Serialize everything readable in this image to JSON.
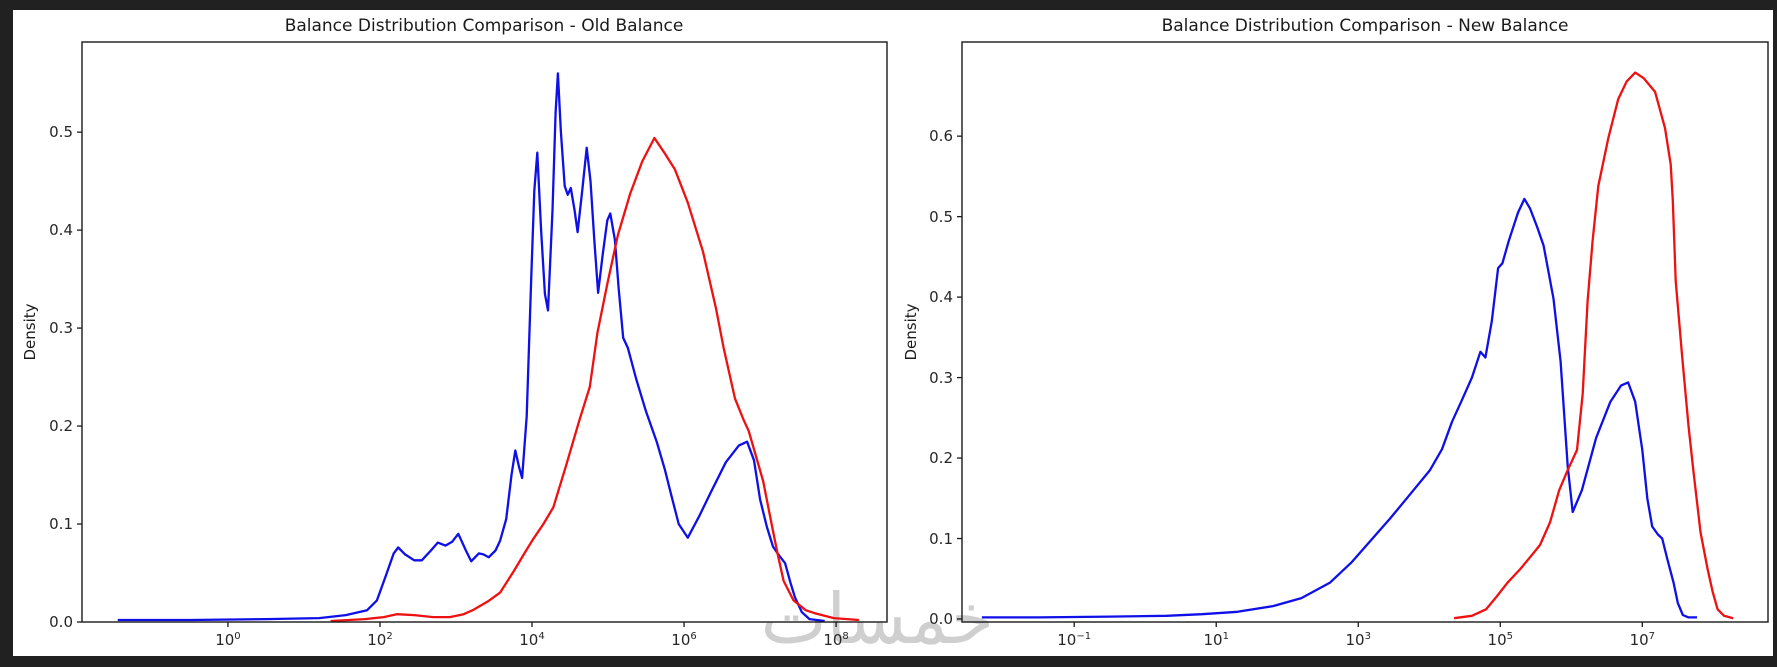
{
  "frame": {
    "background": "#ffffff",
    "border_color": "#212121"
  },
  "watermark": {
    "text": "خمسات"
  },
  "chart_data": [
    {
      "type": "line",
      "title": "Balance Distribution Comparison - Old Balance",
      "xlabel": "",
      "ylabel": "Density",
      "x_scale": "log10",
      "grid": false,
      "legend": null,
      "x_tick_exponents": [
        0,
        2,
        4,
        6,
        8
      ],
      "x_tick_labels": [
        "10^0",
        "10^2",
        "10^4",
        "10^6",
        "10^8"
      ],
      "y_ticks": [
        0.0,
        0.1,
        0.2,
        0.3,
        0.4,
        0.5
      ],
      "xlim_log10": [
        -1.92,
        8.67
      ],
      "ylim": [
        0,
        0.592
      ],
      "series": [
        {
          "name": "blue-density",
          "color": "#0f0fe8",
          "points_log10x_density": [
            [
              -1.45,
              0.002
            ],
            [
              -0.5,
              0.002
            ],
            [
              0.5,
              0.003
            ],
            [
              1.2,
              0.004
            ],
            [
              1.55,
              0.007
            ],
            [
              1.83,
              0.012
            ],
            [
              1.96,
              0.022
            ],
            [
              2.08,
              0.048
            ],
            [
              2.18,
              0.07
            ],
            [
              2.24,
              0.076
            ],
            [
              2.33,
              0.069
            ],
            [
              2.45,
              0.063
            ],
            [
              2.55,
              0.063
            ],
            [
              2.67,
              0.073
            ],
            [
              2.76,
              0.081
            ],
            [
              2.86,
              0.078
            ],
            [
              2.95,
              0.082
            ],
            [
              3.03,
              0.09
            ],
            [
              3.13,
              0.073
            ],
            [
              3.2,
              0.062
            ],
            [
              3.3,
              0.07
            ],
            [
              3.36,
              0.069
            ],
            [
              3.43,
              0.066
            ],
            [
              3.52,
              0.073
            ],
            [
              3.58,
              0.083
            ],
            [
              3.66,
              0.105
            ],
            [
              3.73,
              0.15
            ],
            [
              3.78,
              0.175
            ],
            [
              3.83,
              0.158
            ],
            [
              3.87,
              0.147
            ],
            [
              3.93,
              0.21
            ],
            [
              3.99,
              0.35
            ],
            [
              4.03,
              0.44
            ],
            [
              4.07,
              0.479
            ],
            [
              4.12,
              0.4
            ],
            [
              4.17,
              0.335
            ],
            [
              4.21,
              0.318
            ],
            [
              4.27,
              0.42
            ],
            [
              4.31,
              0.52
            ],
            [
              4.34,
              0.56
            ],
            [
              4.38,
              0.5
            ],
            [
              4.43,
              0.445
            ],
            [
              4.47,
              0.436
            ],
            [
              4.51,
              0.443
            ],
            [
              4.56,
              0.42
            ],
            [
              4.6,
              0.398
            ],
            [
              4.66,
              0.44
            ],
            [
              4.72,
              0.484
            ],
            [
              4.77,
              0.45
            ],
            [
              4.82,
              0.39
            ],
            [
              4.87,
              0.336
            ],
            [
              4.93,
              0.375
            ],
            [
              4.99,
              0.41
            ],
            [
              5.03,
              0.417
            ],
            [
              5.09,
              0.39
            ],
            [
              5.14,
              0.34
            ],
            [
              5.2,
              0.29
            ],
            [
              5.26,
              0.28
            ],
            [
              5.37,
              0.248
            ],
            [
              5.5,
              0.215
            ],
            [
              5.64,
              0.184
            ],
            [
              5.75,
              0.155
            ],
            [
              5.82,
              0.133
            ],
            [
              5.93,
              0.1
            ],
            [
              6.05,
              0.086
            ],
            [
              6.2,
              0.108
            ],
            [
              6.35,
              0.132
            ],
            [
              6.55,
              0.163
            ],
            [
              6.72,
              0.18
            ],
            [
              6.83,
              0.184
            ],
            [
              6.92,
              0.165
            ],
            [
              7.0,
              0.125
            ],
            [
              7.09,
              0.097
            ],
            [
              7.17,
              0.077
            ],
            [
              7.24,
              0.069
            ],
            [
              7.33,
              0.06
            ],
            [
              7.4,
              0.04
            ],
            [
              7.46,
              0.025
            ],
            [
              7.55,
              0.01
            ],
            [
              7.65,
              0.003
            ],
            [
              7.85,
              0.001
            ]
          ]
        },
        {
          "name": "red-density",
          "color": "#ee1111",
          "points_log10x_density": [
            [
              1.35,
              0.001
            ],
            [
              1.8,
              0.003
            ],
            [
              2.05,
              0.005
            ],
            [
              2.22,
              0.008
            ],
            [
              2.45,
              0.007
            ],
            [
              2.7,
              0.005
            ],
            [
              2.92,
              0.005
            ],
            [
              3.1,
              0.008
            ],
            [
              3.22,
              0.012
            ],
            [
              3.42,
              0.021
            ],
            [
              3.58,
              0.03
            ],
            [
              3.76,
              0.052
            ],
            [
              3.9,
              0.07
            ],
            [
              4.01,
              0.084
            ],
            [
              4.15,
              0.1
            ],
            [
              4.28,
              0.117
            ],
            [
              4.45,
              0.16
            ],
            [
              4.62,
              0.205
            ],
            [
              4.76,
              0.24
            ],
            [
              4.86,
              0.295
            ],
            [
              4.99,
              0.345
            ],
            [
              5.13,
              0.395
            ],
            [
              5.29,
              0.437
            ],
            [
              5.45,
              0.47
            ],
            [
              5.61,
              0.494
            ],
            [
              5.75,
              0.478
            ],
            [
              5.88,
              0.462
            ],
            [
              6.05,
              0.428
            ],
            [
              6.25,
              0.378
            ],
            [
              6.42,
              0.32
            ],
            [
              6.52,
              0.28
            ],
            [
              6.67,
              0.228
            ],
            [
              6.78,
              0.207
            ],
            [
              6.85,
              0.195
            ],
            [
              7.04,
              0.144
            ],
            [
              7.16,
              0.097
            ],
            [
              7.23,
              0.07
            ],
            [
              7.31,
              0.042
            ],
            [
              7.44,
              0.022
            ],
            [
              7.6,
              0.012
            ],
            [
              7.72,
              0.009
            ],
            [
              7.97,
              0.004
            ],
            [
              8.3,
              0.002
            ]
          ]
        }
      ]
    },
    {
      "type": "line",
      "title": "Balance Distribution Comparison - New Balance",
      "xlabel": "",
      "ylabel": "Density",
      "x_scale": "log10",
      "grid": false,
      "legend": null,
      "x_tick_exponents": [
        -1,
        1,
        3,
        5,
        7
      ],
      "x_tick_labels": [
        "10^-1",
        "10^1",
        "10^3",
        "10^5",
        "10^7"
      ],
      "y_ticks": [
        0.0,
        0.1,
        0.2,
        0.3,
        0.4,
        0.5,
        0.6
      ],
      "xlim_log10": [
        -2.58,
        8.77
      ],
      "ylim": [
        0,
        0.717
      ],
      "series": [
        {
          "name": "blue-density",
          "color": "#0f0fe8",
          "points_log10x_density": [
            [
              -2.3,
              0.002
            ],
            [
              -1.5,
              0.002
            ],
            [
              -0.5,
              0.003
            ],
            [
              0.3,
              0.004
            ],
            [
              0.8,
              0.006
            ],
            [
              1.3,
              0.009
            ],
            [
              1.8,
              0.016
            ],
            [
              2.2,
              0.026
            ],
            [
              2.6,
              0.045
            ],
            [
              2.9,
              0.07
            ],
            [
              3.2,
              0.1
            ],
            [
              3.45,
              0.125
            ],
            [
              3.73,
              0.155
            ],
            [
              4.01,
              0.185
            ],
            [
              4.18,
              0.211
            ],
            [
              4.32,
              0.245
            ],
            [
              4.45,
              0.27
            ],
            [
              4.6,
              0.3
            ],
            [
              4.72,
              0.332
            ],
            [
              4.79,
              0.325
            ],
            [
              4.88,
              0.37
            ],
            [
              4.97,
              0.436
            ],
            [
              5.03,
              0.442
            ],
            [
              5.12,
              0.47
            ],
            [
              5.25,
              0.505
            ],
            [
              5.34,
              0.522
            ],
            [
              5.42,
              0.51
            ],
            [
              5.52,
              0.487
            ],
            [
              5.61,
              0.464
            ],
            [
              5.75,
              0.398
            ],
            [
              5.85,
              0.32
            ],
            [
              5.95,
              0.19
            ],
            [
              6.02,
              0.133
            ],
            [
              6.15,
              0.16
            ],
            [
              6.35,
              0.225
            ],
            [
              6.55,
              0.27
            ],
            [
              6.7,
              0.29
            ],
            [
              6.8,
              0.294
            ],
            [
              6.9,
              0.27
            ],
            [
              7.0,
              0.21
            ],
            [
              7.07,
              0.15
            ],
            [
              7.14,
              0.115
            ],
            [
              7.22,
              0.105
            ],
            [
              7.28,
              0.1
            ],
            [
              7.35,
              0.075
            ],
            [
              7.44,
              0.045
            ],
            [
              7.5,
              0.02
            ],
            [
              7.57,
              0.005
            ],
            [
              7.65,
              0.002
            ],
            [
              7.77,
              0.002
            ]
          ]
        },
        {
          "name": "red-density",
          "color": "#ee1111",
          "points_log10x_density": [
            [
              4.35,
              0.001
            ],
            [
              4.6,
              0.004
            ],
            [
              4.8,
              0.012
            ],
            [
              4.95,
              0.028
            ],
            [
              5.1,
              0.045
            ],
            [
              5.28,
              0.062
            ],
            [
              5.45,
              0.08
            ],
            [
              5.56,
              0.092
            ],
            [
              5.7,
              0.12
            ],
            [
              5.83,
              0.16
            ],
            [
              5.95,
              0.185
            ],
            [
              6.08,
              0.21
            ],
            [
              6.16,
              0.28
            ],
            [
              6.23,
              0.395
            ],
            [
              6.3,
              0.47
            ],
            [
              6.38,
              0.538
            ],
            [
              6.52,
              0.597
            ],
            [
              6.66,
              0.646
            ],
            [
              6.78,
              0.668
            ],
            [
              6.9,
              0.679
            ],
            [
              7.02,
              0.672
            ],
            [
              7.18,
              0.655
            ],
            [
              7.32,
              0.61
            ],
            [
              7.4,
              0.565
            ],
            [
              7.43,
              0.52
            ],
            [
              7.47,
              0.42
            ],
            [
              7.56,
              0.327
            ],
            [
              7.65,
              0.24
            ],
            [
              7.72,
              0.184
            ],
            [
              7.82,
              0.108
            ],
            [
              7.92,
              0.062
            ],
            [
              7.99,
              0.034
            ],
            [
              8.06,
              0.012
            ],
            [
              8.15,
              0.004
            ],
            [
              8.28,
              0.001
            ]
          ]
        }
      ]
    }
  ]
}
